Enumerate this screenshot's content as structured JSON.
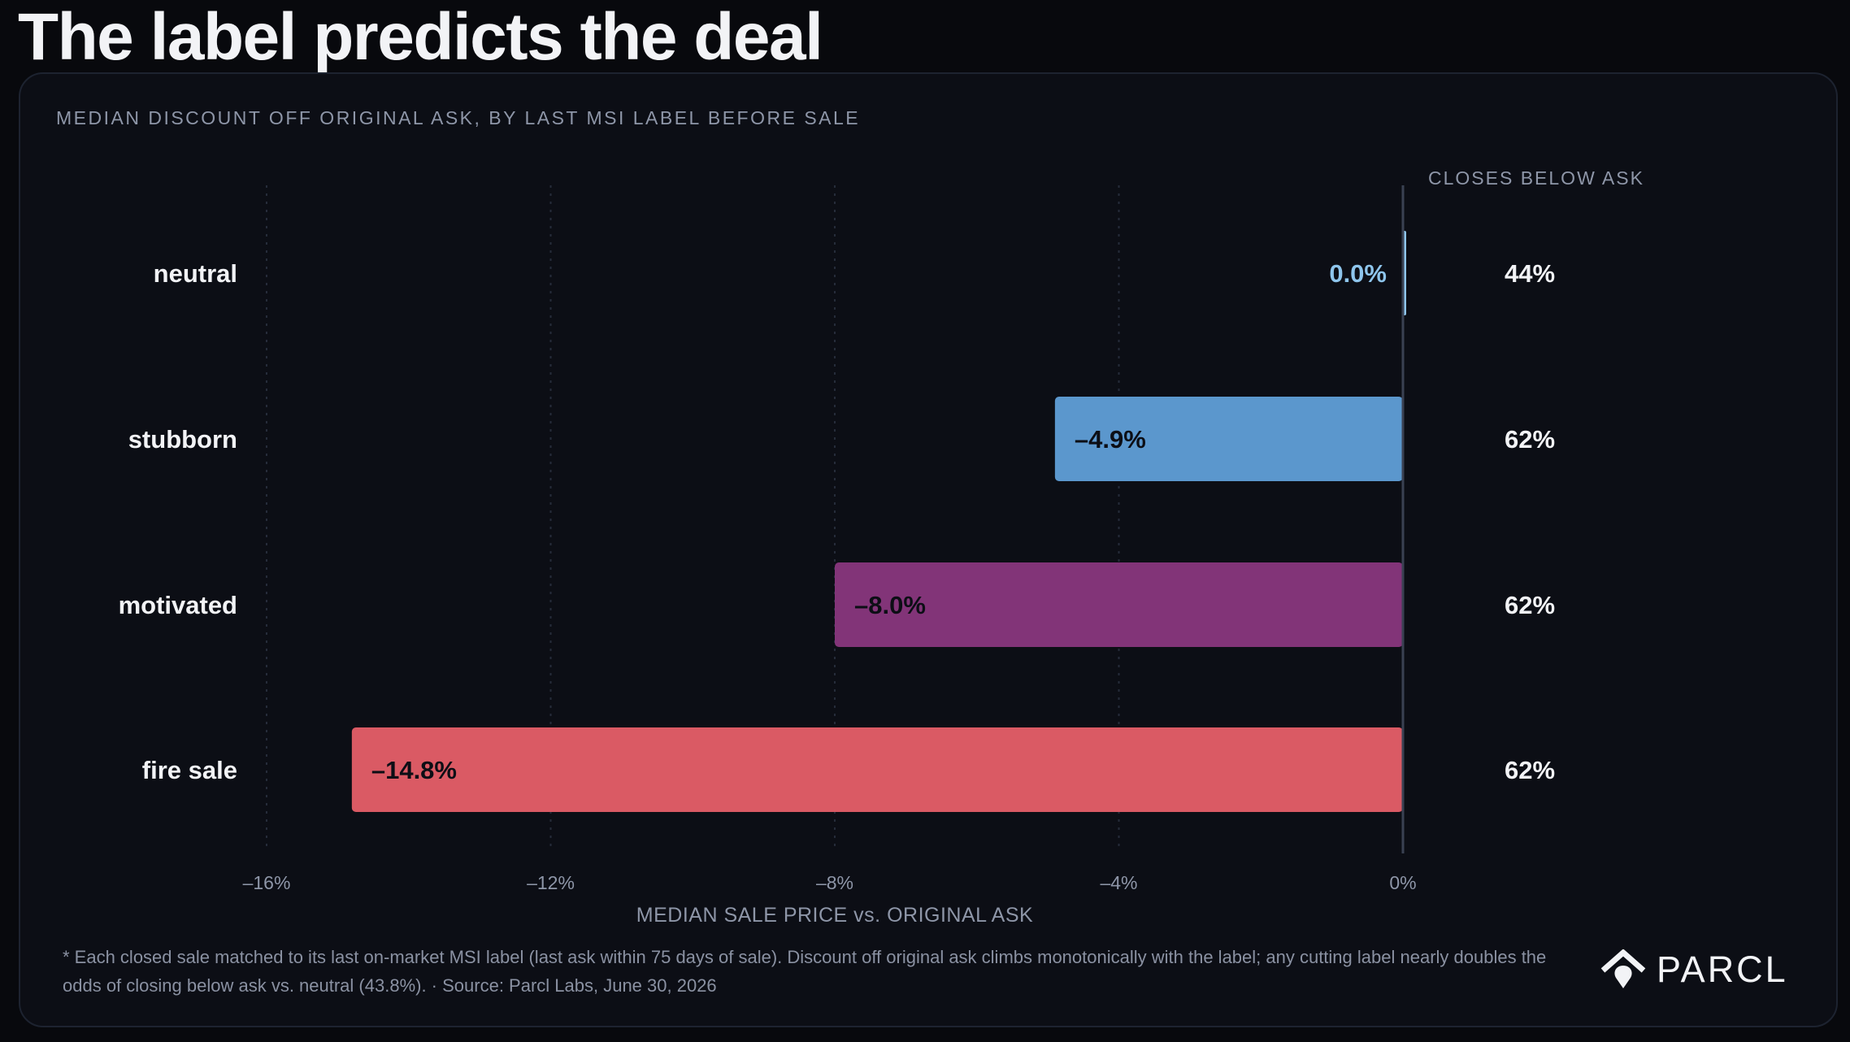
{
  "headline": "The label predicts the deal",
  "subtitle": "MEDIAN DISCOUNT OFF ORIGINAL ASK, BY LAST MSI LABEL BEFORE SALE",
  "chart_data": {
    "type": "bar",
    "orientation": "horizontal",
    "categories": [
      "neutral",
      "stubborn",
      "motivated",
      "fire sale"
    ],
    "values": [
      0.0,
      -4.9,
      -8.0,
      -14.8
    ],
    "value_labels": [
      "0.0%",
      "–4.9%",
      "–8.0%",
      "–14.8%"
    ],
    "colors": [
      "#8ec5ec",
      "#5b97cd",
      "#823478",
      "#da5a64"
    ],
    "xlabel": "MEDIAN SALE PRICE vs. ORIGINAL ASK",
    "xlim": [
      -16,
      0
    ],
    "xticks": [
      -16,
      -12,
      -8,
      -4,
      0
    ],
    "xtick_labels": [
      "–16%",
      "–12%",
      "–8%",
      "–4%",
      "0%"
    ],
    "grid": "vertical dotted",
    "side_column": {
      "header": "CLOSES BELOW ASK",
      "values": [
        "44%",
        "62%",
        "62%",
        "62%"
      ]
    }
  },
  "footnote": "* Each closed sale matched to its last on-market MSI label (last ask within 75 days of sale). Discount off original ask climbs monotonically with the label; any cutting label nearly doubles the odds of closing below ask vs. neutral (43.8%). · Source: Parcl Labs, June 30, 2026",
  "logo": {
    "text": "PARCL",
    "icon": "parcl-house-icon"
  }
}
